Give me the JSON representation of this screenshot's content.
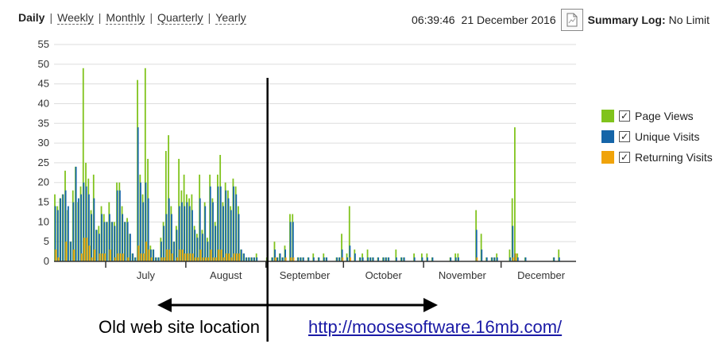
{
  "nav": {
    "periods": [
      {
        "label": "Daily",
        "active": true
      },
      {
        "label": "Weekly",
        "active": false
      },
      {
        "label": "Monthly",
        "active": false
      },
      {
        "label": "Quarterly",
        "active": false
      },
      {
        "label": "Yearly",
        "active": false
      }
    ],
    "separator": "|"
  },
  "header": {
    "time": "06:39:46",
    "date": "21 December 2016",
    "export_icon": "document-export-icon",
    "summary_label": "Summary Log:",
    "summary_value": "No Limit"
  },
  "legend": [
    {
      "label": "Page Views",
      "color": "#80c31c",
      "checked": true
    },
    {
      "label": "Unique Visits",
      "color": "#1565a8",
      "checked": true
    },
    {
      "label": "Returning Visits",
      "color": "#f0a30a",
      "checked": true
    }
  ],
  "annotation": {
    "old_label": "Old web site location",
    "new_url": "http://moosesoftware.16mb.com/"
  },
  "colors": {
    "page_views": "#80c31c",
    "unique": "#1565a8",
    "returning": "#f0a30a",
    "grid": "#dddddd",
    "axis": "#333333"
  },
  "chart_data": {
    "type": "bar",
    "title": "",
    "xlabel": "",
    "ylabel": "",
    "ylim": [
      0,
      55
    ],
    "yticks": [
      0,
      5,
      10,
      15,
      20,
      25,
      30,
      35,
      40,
      45,
      50,
      55
    ],
    "month_labels": [
      "July",
      "August",
      "September",
      "October",
      "November",
      "December"
    ],
    "x_start": "2016-06-11",
    "series": [
      {
        "name": "Page Views",
        "values": [
          17,
          14,
          16,
          17,
          23,
          13,
          5,
          18,
          24,
          15,
          19,
          49,
          25,
          21,
          13,
          22,
          8,
          9,
          14,
          12,
          10,
          15,
          10,
          10,
          20,
          20,
          14,
          10,
          11,
          7,
          2,
          1,
          46,
          22,
          17,
          49,
          26,
          4,
          3,
          1,
          1,
          6,
          10,
          28,
          32,
          14,
          5,
          9,
          26,
          18,
          22,
          17,
          16,
          17,
          9,
          7,
          22,
          8,
          15,
          6,
          22,
          16,
          10,
          22,
          27,
          15,
          20,
          18,
          14,
          21,
          19,
          14,
          3,
          2,
          1,
          1,
          1,
          1,
          2,
          0,
          0,
          0,
          1,
          0,
          1,
          5,
          1,
          2,
          1,
          4,
          0,
          12,
          12,
          0,
          1,
          1,
          1,
          0,
          1,
          0,
          2,
          0,
          1,
          0,
          2,
          1,
          0,
          0,
          0,
          1,
          1,
          7,
          0,
          2,
          14,
          0,
          3,
          0,
          1,
          2,
          0,
          3,
          1,
          1,
          0,
          1,
          0,
          1,
          1,
          1,
          0,
          0,
          3,
          0,
          1,
          1,
          0,
          0,
          0,
          2,
          0,
          0,
          2,
          0,
          2,
          0,
          1,
          0,
          0,
          0,
          0,
          0,
          0,
          1,
          0,
          2,
          2,
          0,
          0,
          0,
          0,
          0,
          0,
          13,
          0,
          7,
          0,
          1,
          0,
          1,
          1,
          2,
          0,
          0,
          0,
          0,
          3,
          16,
          34,
          2,
          0,
          0,
          1,
          0,
          0,
          0,
          0,
          0,
          0,
          0,
          0,
          0,
          0,
          1,
          0,
          3,
          0,
          0,
          0,
          0,
          0,
          0
        ]
      },
      {
        "name": "Unique Visits",
        "values": [
          14,
          13,
          16,
          17,
          18,
          14,
          5,
          15,
          24,
          16,
          17,
          20,
          19,
          17,
          12,
          16,
          8,
          7,
          12,
          10,
          10,
          12,
          10,
          9,
          18,
          18,
          12,
          10,
          10,
          7,
          2,
          1,
          34,
          20,
          15,
          20,
          16,
          3,
          3,
          1,
          1,
          5,
          9,
          12,
          16,
          12,
          5,
          8,
          14,
          15,
          14,
          15,
          14,
          13,
          8,
          6,
          16,
          7,
          14,
          5,
          19,
          15,
          9,
          19,
          19,
          14,
          18,
          16,
          13,
          19,
          17,
          12,
          3,
          2,
          1,
          1,
          1,
          1,
          1,
          0,
          0,
          0,
          1,
          0,
          1,
          3,
          1,
          2,
          1,
          3,
          0,
          10,
          10,
          0,
          1,
          1,
          1,
          0,
          1,
          0,
          1,
          0,
          1,
          0,
          1,
          1,
          0,
          0,
          0,
          1,
          1,
          3,
          0,
          1,
          4,
          0,
          2,
          0,
          1,
          1,
          0,
          1,
          1,
          1,
          0,
          1,
          0,
          1,
          1,
          1,
          0,
          0,
          1,
          0,
          1,
          1,
          0,
          0,
          0,
          1,
          0,
          0,
          1,
          0,
          1,
          0,
          1,
          0,
          0,
          0,
          0,
          0,
          0,
          1,
          0,
          1,
          1,
          0,
          0,
          0,
          0,
          0,
          0,
          8,
          0,
          3,
          0,
          1,
          0,
          1,
          1,
          1,
          0,
          0,
          0,
          0,
          1,
          9,
          2,
          1,
          0,
          0,
          1,
          0,
          0,
          0,
          0,
          0,
          0,
          0,
          0,
          0,
          0,
          1,
          0,
          1,
          0,
          0,
          0,
          0,
          0,
          0
        ]
      },
      {
        "name": "Returning Visits",
        "values": [
          3,
          1,
          0,
          0,
          5,
          0,
          0,
          3,
          0,
          0,
          2,
          6,
          6,
          4,
          1,
          3,
          0,
          2,
          2,
          2,
          0,
          3,
          0,
          1,
          2,
          2,
          2,
          0,
          1,
          0,
          0,
          0,
          4,
          2,
          2,
          5,
          3,
          1,
          0,
          0,
          0,
          1,
          1,
          3,
          3,
          2,
          0,
          1,
          3,
          3,
          2,
          2,
          2,
          2,
          1,
          1,
          3,
          1,
          1,
          1,
          3,
          1,
          1,
          3,
          3,
          1,
          2,
          2,
          1,
          2,
          2,
          2,
          0,
          0,
          0,
          0,
          0,
          0,
          0,
          0,
          0,
          0,
          0,
          0,
          0,
          1,
          0,
          0,
          0,
          1,
          0,
          1,
          1,
          0,
          0,
          0,
          0,
          0,
          0,
          0,
          0,
          0,
          0,
          0,
          0,
          0,
          0,
          0,
          0,
          0,
          0,
          1,
          0,
          0,
          1,
          0,
          0,
          0,
          0,
          0,
          0,
          0,
          0,
          0,
          0,
          0,
          0,
          0,
          0,
          0,
          0,
          0,
          0,
          0,
          0,
          0,
          0,
          0,
          0,
          0,
          0,
          0,
          0,
          0,
          0,
          0,
          0,
          0,
          0,
          0,
          0,
          0,
          0,
          0,
          0,
          0,
          0,
          0,
          0,
          0,
          0,
          0,
          0,
          1,
          0,
          0,
          0,
          0,
          0,
          0,
          0,
          0,
          0,
          0,
          0,
          0,
          0,
          1,
          2,
          0,
          0,
          0,
          0,
          0,
          0,
          0,
          0,
          0,
          0,
          0,
          0,
          0,
          0,
          0,
          0,
          0,
          0,
          0,
          0,
          0,
          0,
          0
        ]
      }
    ],
    "grid": true,
    "legend_position": "right",
    "marker_line": {
      "label": "separator between old and new site",
      "at_month_label": "September"
    }
  }
}
